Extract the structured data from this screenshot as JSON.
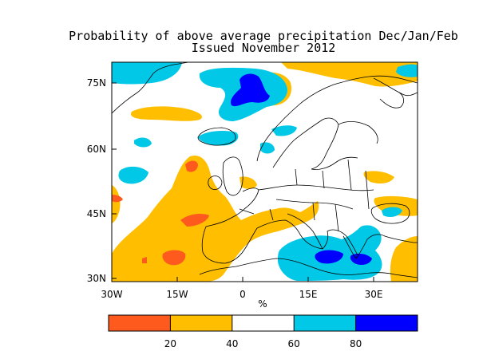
{
  "title": {
    "line1": "Probability of above average precipitation Dec/Jan/Feb",
    "line2": "Issued November 2012"
  },
  "map": {
    "lat_labels": [
      "75N",
      "60N",
      "45N",
      "30N"
    ],
    "lon_labels": [
      "30W",
      "15W",
      "0",
      "15E",
      "30E"
    ],
    "x_unit": "%"
  },
  "colorbar": {
    "bins": [
      {
        "range": [
          0,
          20
        ],
        "color": "#ff5a1e"
      },
      {
        "range": [
          20,
          40
        ],
        "color": "#ffbe00"
      },
      {
        "range": [
          40,
          60
        ],
        "color": "#ffffff"
      },
      {
        "range": [
          60,
          80
        ],
        "color": "#00c8e6"
      },
      {
        "range": [
          80,
          100
        ],
        "color": "#0000ff"
      }
    ],
    "labels": [
      "20",
      "40",
      "60",
      "80"
    ]
  },
  "colors": {
    "low": "#ff5a1e",
    "below": "#ffbe00",
    "neutral": "#ffffff",
    "above": "#00c8e6",
    "high": "#0000ff"
  }
}
